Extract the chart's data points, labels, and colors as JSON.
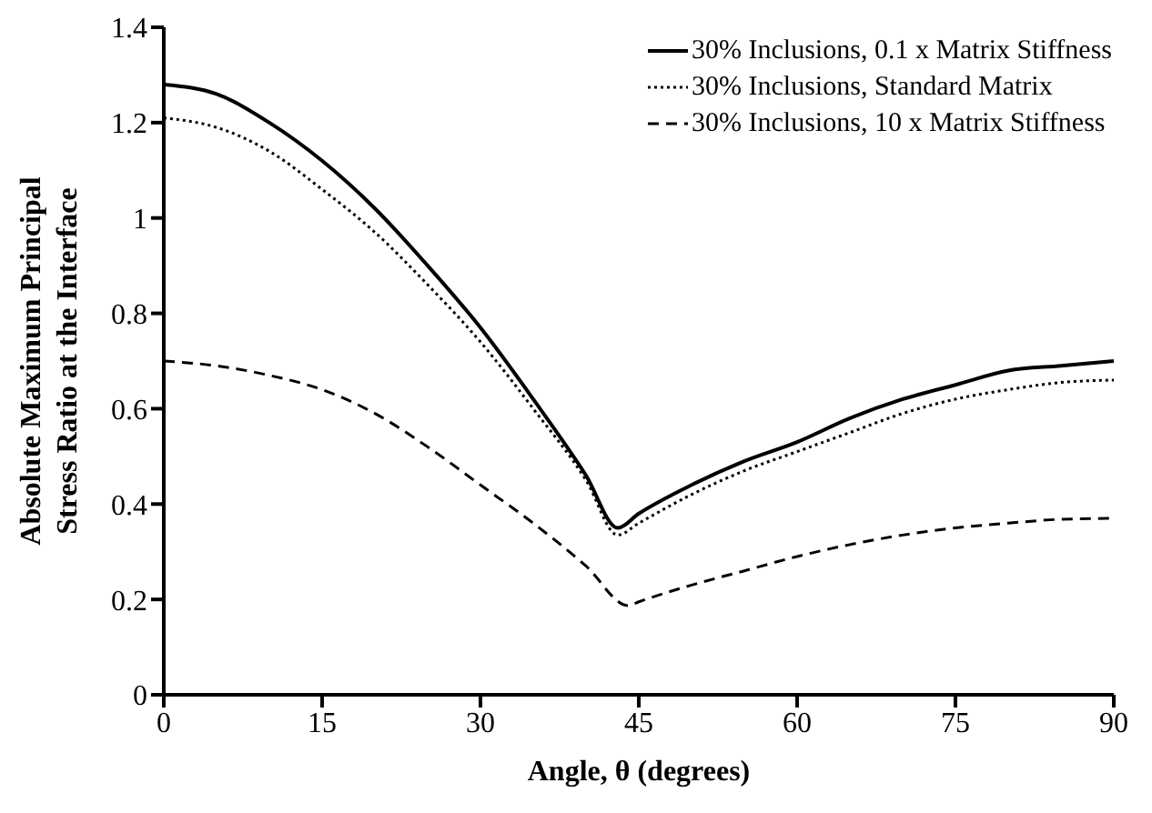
{
  "chart_data": {
    "type": "line",
    "xlabel": "Angle, θ (degrees)",
    "ylabel": "Absolute Maximum Principal Stress Ratio at  the Interface",
    "xlim": [
      0,
      90
    ],
    "xticks": [
      0,
      15,
      30,
      45,
      60,
      75,
      90
    ],
    "ylim": [
      0,
      1.4
    ],
    "yticks": [
      0,
      0.2,
      0.4,
      0.6,
      0.8,
      1,
      1.2,
      1.4
    ],
    "grid": false,
    "legend": "top right",
    "marker": "none",
    "series": [
      {
        "name": "30% Inclusions, 0.1 x Matrix Stiffness",
        "color": "#000000",
        "line_style": "solid",
        "x": [
          0,
          5,
          10,
          15,
          20,
          25,
          30,
          35,
          40,
          43,
          45,
          50,
          55,
          60,
          65,
          70,
          75,
          80,
          85,
          90
        ],
        "values": [
          1.28,
          1.26,
          1.2,
          1.12,
          1.02,
          0.9,
          0.77,
          0.62,
          0.46,
          0.35,
          0.38,
          0.44,
          0.49,
          0.53,
          0.58,
          0.62,
          0.65,
          0.68,
          0.69,
          0.7
        ]
      },
      {
        "name": "30% Inclusions, Standard Matrix",
        "color": "#000000",
        "line_style": "dotted",
        "x": [
          0,
          5,
          10,
          15,
          20,
          25,
          30,
          35,
          40,
          43,
          45,
          50,
          55,
          60,
          65,
          70,
          75,
          80,
          85,
          90
        ],
        "values": [
          1.21,
          1.19,
          1.14,
          1.06,
          0.97,
          0.86,
          0.74,
          0.6,
          0.45,
          0.335,
          0.36,
          0.42,
          0.47,
          0.51,
          0.55,
          0.59,
          0.62,
          0.64,
          0.655,
          0.66
        ]
      },
      {
        "name": "30% Inclusions, 10 x Matrix Stiffness",
        "color": "#000000",
        "line_style": "dashed",
        "x": [
          0,
          5,
          10,
          15,
          20,
          25,
          30,
          35,
          40,
          44,
          45,
          50,
          55,
          60,
          65,
          70,
          75,
          80,
          85,
          90
        ],
        "values": [
          0.7,
          0.69,
          0.67,
          0.64,
          0.59,
          0.52,
          0.44,
          0.36,
          0.27,
          0.187,
          0.195,
          0.23,
          0.26,
          0.29,
          0.315,
          0.335,
          0.35,
          0.36,
          0.368,
          0.37
        ]
      }
    ]
  }
}
